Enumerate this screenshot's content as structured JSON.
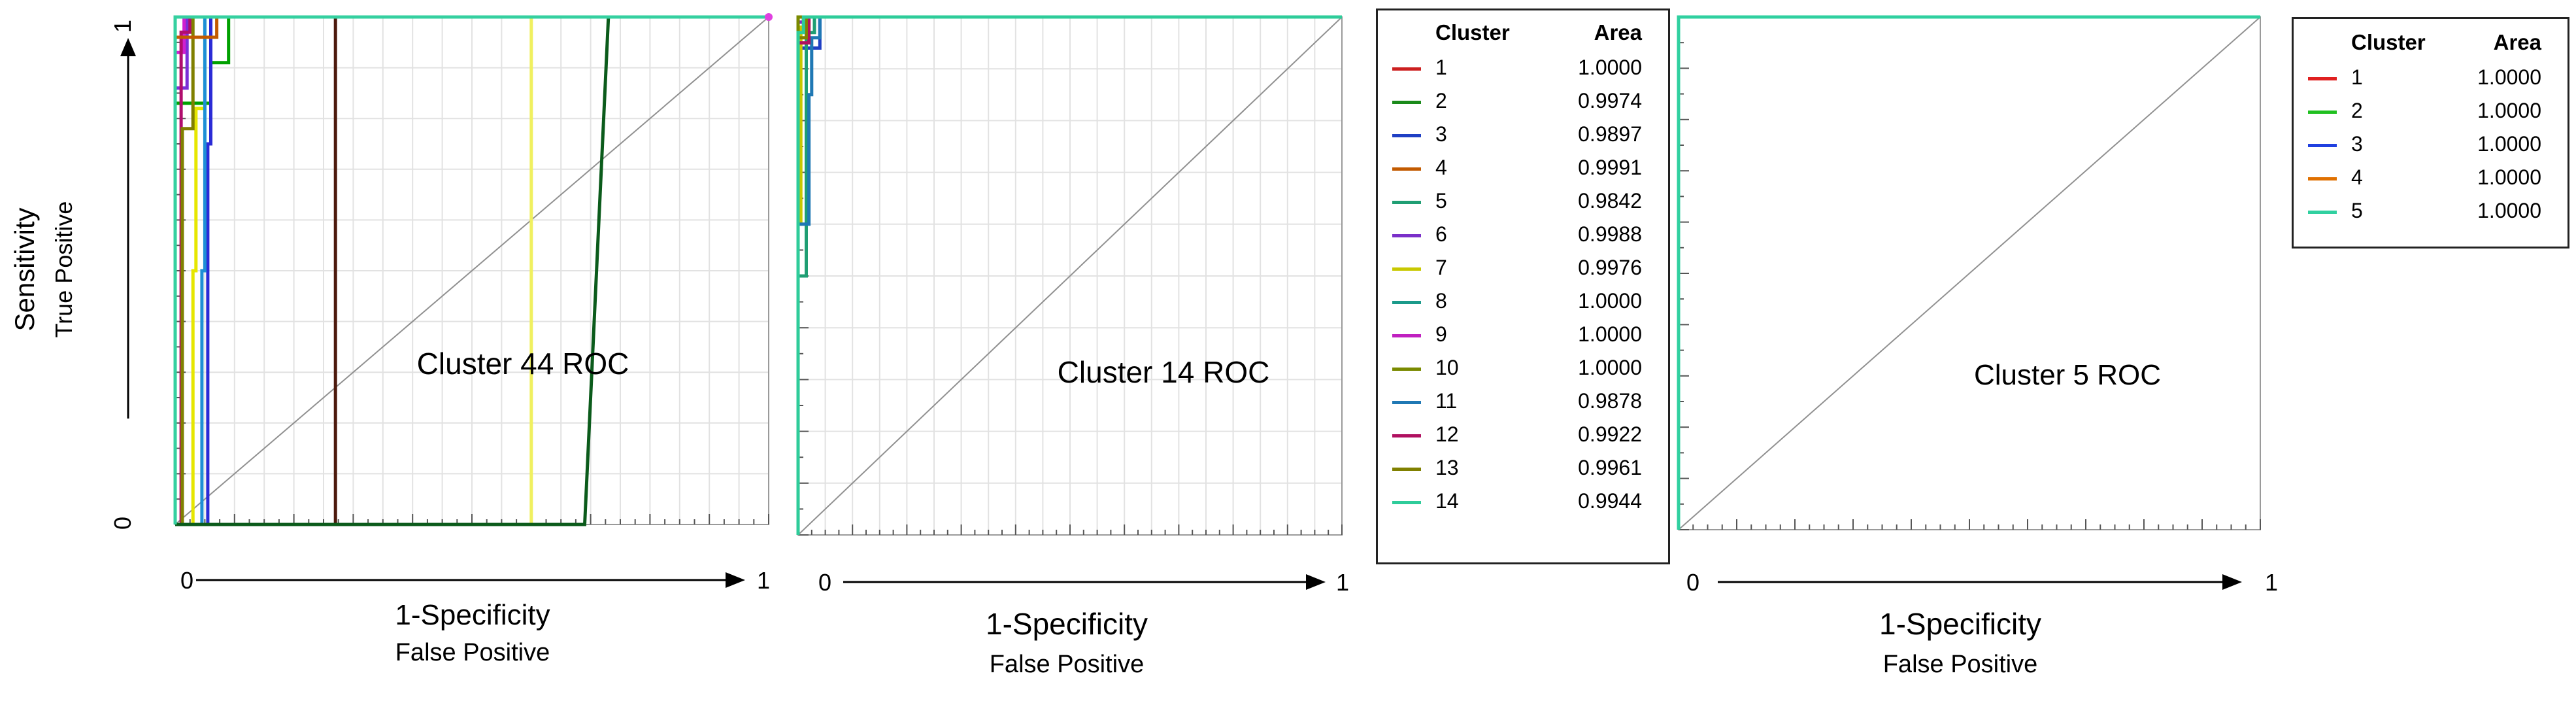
{
  "y_axis": {
    "label": "Sensitivity",
    "sublabel": "True Positive",
    "tick_low": "0",
    "tick_high": "1"
  },
  "x_axis": {
    "label": "1-Specificity",
    "sublabel": "False Positive",
    "tick_low": "0",
    "tick_high": "1"
  },
  "legend_headers": {
    "cluster": "Cluster",
    "area": "Area"
  },
  "chart_data": [
    {
      "type": "line",
      "title": "Cluster 44 ROC",
      "xlabel": "1-Specificity",
      "ylabel": "Sensitivity",
      "xlim": [
        0,
        1
      ],
      "ylim": [
        0,
        1
      ],
      "grid": true,
      "legend": "none",
      "diagonal": true,
      "series": [
        {
          "color": "#00a000",
          "points": [
            [
              0,
              0
            ],
            [
              0,
              0.83
            ],
            [
              0.06,
              0.83
            ],
            [
              0.06,
              0.91
            ],
            [
              0.09,
              0.91
            ],
            [
              0.09,
              1
            ],
            [
              1,
              1
            ]
          ]
        },
        {
          "color": "#2b2bd6",
          "points": [
            [
              0,
              0
            ],
            [
              0.055,
              0
            ],
            [
              0.055,
              0.75
            ],
            [
              0.06,
              0.75
            ],
            [
              0.06,
              1
            ],
            [
              1,
              1
            ]
          ]
        },
        {
          "color": "#7b2fd6",
          "points": [
            [
              0,
              0
            ],
            [
              0,
              0.86
            ],
            [
              0.02,
              0.86
            ],
            [
              0.02,
              1
            ],
            [
              1,
              1
            ]
          ]
        },
        {
          "color": "#d020d0",
          "points": [
            [
              0,
              0
            ],
            [
              0,
              0.93
            ],
            [
              0.015,
              0.93
            ],
            [
              0.015,
              1
            ],
            [
              1,
              1
            ]
          ]
        },
        {
          "color": "#b00d6d",
          "points": [
            [
              0,
              0
            ],
            [
              0.01,
              0
            ],
            [
              0.01,
              0.97
            ],
            [
              0.025,
              0.97
            ],
            [
              0.025,
              1
            ],
            [
              1,
              1
            ]
          ]
        },
        {
          "color": "#e6e600",
          "points": [
            [
              0,
              0
            ],
            [
              0.03,
              0
            ],
            [
              0.03,
              0.5
            ],
            [
              0.035,
              0.5
            ],
            [
              0.035,
              0.82
            ],
            [
              0.05,
              0.82
            ],
            [
              0.05,
              1
            ],
            [
              1,
              1
            ]
          ]
        },
        {
          "color": "#808000",
          "points": [
            [
              0,
              0
            ],
            [
              0.012,
              0
            ],
            [
              0.012,
              0.78
            ],
            [
              0.03,
              0.78
            ],
            [
              0.03,
              1
            ],
            [
              1,
              1
            ]
          ]
        },
        {
          "color": "#1e8fd6",
          "points": [
            [
              0,
              0
            ],
            [
              0.045,
              0
            ],
            [
              0.045,
              0.5
            ],
            [
              0.05,
              0.5
            ],
            [
              0.05,
              1
            ],
            [
              1,
              1
            ]
          ]
        },
        {
          "color": "#c25a00",
          "points": [
            [
              0,
              0
            ],
            [
              0,
              0.96
            ],
            [
              0.07,
              0.96
            ],
            [
              0.07,
              1
            ],
            [
              1,
              1
            ]
          ]
        },
        {
          "color": "#4d1a0d",
          "points": [
            [
              0,
              0
            ],
            [
              0.27,
              0
            ],
            [
              0.27,
              1
            ],
            [
              1,
              1
            ]
          ]
        },
        {
          "color": "#f0f060",
          "points": [
            [
              0,
              0
            ],
            [
              0.6,
              0
            ],
            [
              0.6,
              1
            ],
            [
              1,
              1
            ]
          ]
        },
        {
          "color": "#0b5b1b",
          "points": [
            [
              0,
              0
            ],
            [
              0.69,
              0
            ],
            [
              0.73,
              1
            ],
            [
              1,
              1
            ]
          ]
        },
        {
          "color": "#35d0a0",
          "points": [
            [
              0,
              0
            ],
            [
              0,
              1
            ],
            [
              1,
              1
            ]
          ]
        }
      ]
    },
    {
      "type": "line",
      "title": "Cluster 14 ROC",
      "xlabel": "1-Specificity",
      "ylabel": "Sensitivity",
      "xlim": [
        0,
        1
      ],
      "ylim": [
        0,
        1
      ],
      "grid": true,
      "legend": "right",
      "diagonal": true,
      "series": [
        {
          "name": "1",
          "area": "1.0000",
          "color": "#cc1f1f",
          "points": [
            [
              0,
              0
            ],
            [
              0,
              1
            ],
            [
              1,
              1
            ]
          ]
        },
        {
          "name": "2",
          "area": "0.9974",
          "color": "#1a8a1a",
          "points": [
            [
              0,
              0
            ],
            [
              0,
              0.98
            ],
            [
              0.01,
              0.98
            ],
            [
              0.01,
              1
            ],
            [
              1,
              1
            ]
          ]
        },
        {
          "name": "3",
          "area": "0.9897",
          "color": "#1f3fc4",
          "points": [
            [
              0,
              0
            ],
            [
              0,
              0.94
            ],
            [
              0.04,
              0.94
            ],
            [
              0.04,
              1
            ],
            [
              1,
              1
            ]
          ]
        },
        {
          "name": "4",
          "area": "0.9991",
          "color": "#c25a00",
          "points": [
            [
              0,
              0
            ],
            [
              0,
              0.99
            ],
            [
              0.01,
              0.99
            ],
            [
              0.01,
              1
            ],
            [
              1,
              1
            ]
          ]
        },
        {
          "name": "5",
          "area": "0.9842",
          "color": "#1f9e73",
          "points": [
            [
              0,
              0
            ],
            [
              0,
              0.5
            ],
            [
              0.015,
              0.5
            ],
            [
              0.015,
              0.97
            ],
            [
              0.03,
              0.97
            ],
            [
              0.03,
              1
            ],
            [
              1,
              1
            ]
          ]
        },
        {
          "name": "6",
          "area": "0.9988",
          "color": "#7a2fc9",
          "points": [
            [
              0,
              0
            ],
            [
              0,
              0.99
            ],
            [
              0.012,
              0.99
            ],
            [
              0.012,
              1
            ],
            [
              1,
              1
            ]
          ]
        },
        {
          "name": "7",
          "area": "0.9976",
          "color": "#c8c800",
          "points": [
            [
              0,
              0
            ],
            [
              0,
              0.6
            ],
            [
              0.005,
              0.6
            ],
            [
              0.005,
              0.98
            ],
            [
              0.02,
              0.98
            ],
            [
              0.02,
              1
            ],
            [
              1,
              1
            ]
          ]
        },
        {
          "name": "8",
          "area": "1.0000",
          "color": "#1a9a8a",
          "points": [
            [
              0,
              0
            ],
            [
              0,
              1
            ],
            [
              1,
              1
            ]
          ]
        },
        {
          "name": "9",
          "area": "1.0000",
          "color": "#c020c0",
          "points": [
            [
              0,
              0
            ],
            [
              0,
              1
            ],
            [
              1,
              1
            ]
          ]
        },
        {
          "name": "10",
          "area": "1.0000",
          "color": "#7a8a00",
          "points": [
            [
              0,
              0
            ],
            [
              0,
              1
            ],
            [
              1,
              1
            ]
          ]
        },
        {
          "name": "11",
          "area": "0.9878",
          "color": "#1f78b4",
          "points": [
            [
              0,
              0
            ],
            [
              0,
              0.6
            ],
            [
              0.02,
              0.6
            ],
            [
              0.02,
              0.85
            ],
            [
              0.025,
              0.85
            ],
            [
              0.025,
              0.96
            ],
            [
              0.04,
              0.96
            ],
            [
              0.04,
              1
            ],
            [
              1,
              1
            ]
          ]
        },
        {
          "name": "12",
          "area": "0.9922",
          "color": "#b01060",
          "points": [
            [
              0,
              0
            ],
            [
              0,
              0.95
            ],
            [
              0.02,
              0.95
            ],
            [
              0.02,
              1
            ],
            [
              1,
              1
            ]
          ]
        },
        {
          "name": "13",
          "area": "0.9961",
          "color": "#808000",
          "points": [
            [
              0,
              0
            ],
            [
              0,
              0.96
            ],
            [
              0.015,
              0.96
            ],
            [
              0.015,
              1
            ],
            [
              1,
              1
            ]
          ]
        },
        {
          "name": "14",
          "area": "0.9944",
          "color": "#2ecc9a",
          "points": [
            [
              0,
              0
            ],
            [
              0,
              0.97
            ],
            [
              0.01,
              0.97
            ],
            [
              0.01,
              1
            ],
            [
              1,
              1
            ]
          ]
        }
      ]
    },
    {
      "type": "line",
      "title": "Cluster 5 ROC",
      "xlabel": "1-Specificity",
      "ylabel": "Sensitivity",
      "xlim": [
        0,
        1
      ],
      "ylim": [
        0,
        1
      ],
      "grid": false,
      "legend": "right",
      "diagonal": true,
      "series": [
        {
          "name": "1",
          "area": "1.0000",
          "color": "#e02020",
          "points": [
            [
              0,
              0
            ],
            [
              0,
              1
            ],
            [
              1,
              1
            ]
          ]
        },
        {
          "name": "2",
          "area": "1.0000",
          "color": "#20c020",
          "points": [
            [
              0,
              0
            ],
            [
              0,
              1
            ],
            [
              1,
              1
            ]
          ]
        },
        {
          "name": "3",
          "area": "1.0000",
          "color": "#2040e0",
          "points": [
            [
              0,
              0
            ],
            [
              0,
              1
            ],
            [
              1,
              1
            ]
          ]
        },
        {
          "name": "4",
          "area": "1.0000",
          "color": "#e07000",
          "points": [
            [
              0,
              0
            ],
            [
              0,
              1
            ],
            [
              1,
              1
            ]
          ]
        },
        {
          "name": "5",
          "area": "1.0000",
          "color": "#30d0a0",
          "points": [
            [
              0,
              0
            ],
            [
              0,
              1
            ],
            [
              1,
              1
            ]
          ]
        }
      ]
    }
  ]
}
